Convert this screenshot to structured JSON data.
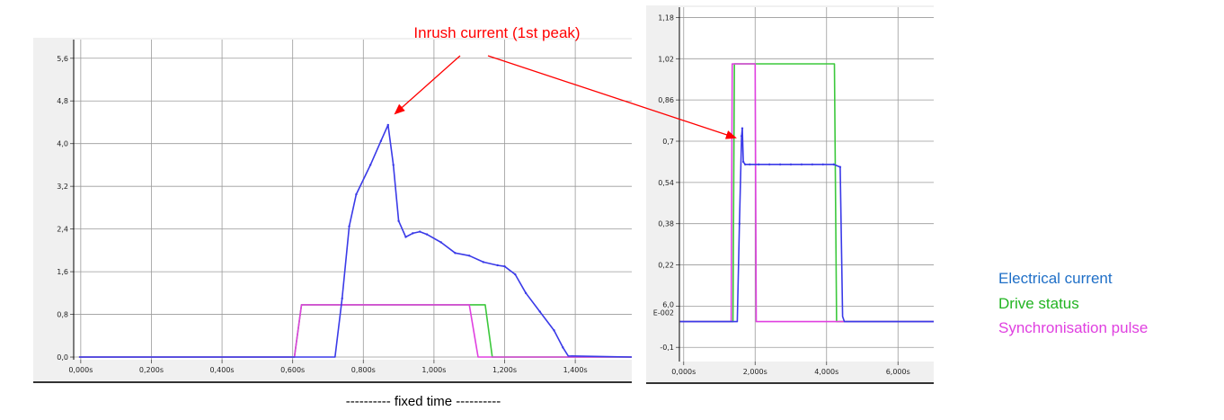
{
  "annotation": {
    "text": "Inrush current (1st peak)",
    "color": "#ff0000"
  },
  "caption": "---------- fixed time ----------",
  "legend": [
    {
      "label": "Electrical current",
      "color": "#1f6fc7"
    },
    {
      "label": "Drive status",
      "color": "#22b422"
    },
    {
      "label": "Synchronisation pulse",
      "color": "#e040e0"
    }
  ],
  "colors": {
    "current": "#3a3ae8",
    "drive": "#3cc83c",
    "sync": "#e040e0",
    "grid": "#9a9a9a",
    "panel_bg": "#f0f0f0"
  },
  "chart_data": [
    {
      "type": "line",
      "grid": true,
      "xlim": [
        -0.02,
        1.56
      ],
      "ylim": [
        -0.05,
        5.95
      ],
      "x_ticks": [
        0,
        0.2,
        0.4,
        0.6,
        0.8,
        1.0,
        1.2,
        1.4
      ],
      "x_tick_labels": [
        "0,000s",
        "0,200s",
        "0,400s",
        "0,600s",
        "0,800s",
        "1,000s",
        "1,200s",
        "1,400s"
      ],
      "y_ticks": [
        0,
        0.8,
        1.6,
        2.4,
        3.2,
        4.0,
        4.8,
        5.6
      ],
      "y_tick_labels": [
        "0,0",
        "0,8",
        "1,6",
        "2,4",
        "3,2",
        "4,0",
        "4,8",
        "5,6"
      ],
      "series": [
        {
          "key": "drive",
          "x": [
            -0.005,
            0.605,
            0.625,
            1.145,
            1.165,
            1.56
          ],
          "y": [
            0,
            0,
            0.98,
            0.98,
            0,
            0
          ]
        },
        {
          "key": "sync",
          "x": [
            -0.005,
            0.605,
            0.625,
            1.1,
            1.125,
            1.56
          ],
          "y": [
            0,
            0,
            0.98,
            0.98,
            0,
            0
          ]
        },
        {
          "key": "current",
          "x": [
            -0.005,
            0.72,
            0.74,
            0.76,
            0.78,
            0.82,
            0.85,
            0.87,
            0.885,
            0.9,
            0.92,
            0.94,
            0.96,
            0.98,
            1.02,
            1.06,
            1.1,
            1.14,
            1.18,
            1.2,
            1.23,
            1.26,
            1.3,
            1.34,
            1.365,
            1.38,
            1.56
          ],
          "y": [
            0,
            0,
            1.1,
            2.45,
            3.05,
            3.6,
            4.05,
            4.35,
            3.6,
            2.55,
            2.25,
            2.32,
            2.35,
            2.3,
            2.15,
            1.95,
            1.9,
            1.78,
            1.72,
            1.7,
            1.55,
            1.2,
            0.85,
            0.5,
            0.18,
            0.02,
            0
          ]
        }
      ]
    },
    {
      "type": "line",
      "grid": true,
      "xlim": [
        -0.12,
        7.0
      ],
      "ylim": [
        -0.155,
        1.22
      ],
      "x_ticks": [
        0,
        2,
        4,
        6
      ],
      "x_tick_labels": [
        "0,000s",
        "2,000s",
        "4,000s",
        "6,000s"
      ],
      "y_ticks": [
        -0.1,
        0.06,
        0.22,
        0.38,
        0.54,
        0.7,
        0.86,
        1.02,
        1.18
      ],
      "y_tick_labels": [
        "-0,1",
        "6,0\nE-002",
        "0,22",
        "0,38",
        "0,54",
        "0,7",
        "0,86",
        "1,02",
        "1,18"
      ],
      "series": [
        {
          "key": "drive",
          "x": [
            -0.1,
            1.38,
            1.42,
            4.22,
            4.28,
            7.0
          ],
          "y": [
            0,
            0,
            1.0,
            1.0,
            0,
            0
          ]
        },
        {
          "key": "sync",
          "x": [
            -0.1,
            1.33,
            1.36,
            2.0,
            2.03,
            7.0
          ],
          "y": [
            0,
            0,
            1.0,
            1.0,
            0,
            0
          ]
        },
        {
          "key": "current",
          "x": [
            -0.1,
            1.5,
            1.56,
            1.62,
            1.64,
            1.67,
            1.72,
            1.85,
            2.1,
            2.4,
            2.7,
            3.0,
            3.3,
            3.6,
            3.9,
            4.2,
            4.38,
            4.45,
            4.5,
            7.0
          ],
          "y": [
            0,
            0,
            0.38,
            0.72,
            0.75,
            0.62,
            0.61,
            0.61,
            0.61,
            0.61,
            0.61,
            0.61,
            0.61,
            0.61,
            0.61,
            0.61,
            0.6,
            0.02,
            0,
            0
          ]
        }
      ]
    }
  ]
}
